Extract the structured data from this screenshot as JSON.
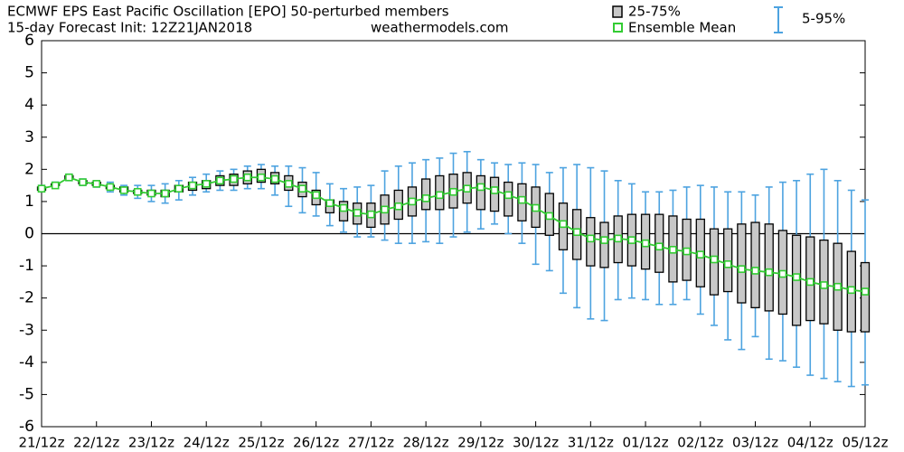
{
  "chart_data": {
    "type": "box",
    "title": "ECMWF EPS East Pacific Oscillation [EPO]  50-perturbed members",
    "subtitle": "15-day Forecast Init: 12Z21JAN2018",
    "source": "weathermodels.com",
    "legend": {
      "box": "25-75%",
      "mean": "Ensemble Mean",
      "whisker": "5-95%"
    },
    "colors": {
      "box": "#c8c8c8",
      "mean": "#33cc33",
      "whisker": "#4da3e0"
    },
    "x": [
      0,
      6,
      12,
      18,
      24,
      30,
      36,
      42,
      48,
      54,
      60,
      66,
      72,
      78,
      84,
      90,
      96,
      102,
      108,
      114,
      120,
      126,
      132,
      138,
      144,
      150,
      156,
      162,
      168,
      174,
      180,
      186,
      192,
      198,
      204,
      210,
      216,
      222,
      228,
      234,
      240,
      246,
      252,
      258,
      264,
      270,
      276,
      282,
      288,
      294,
      300,
      306,
      312,
      318,
      324,
      330,
      336,
      342,
      348,
      354,
      360
    ],
    "p5": [
      1.3,
      1.45,
      1.65,
      1.5,
      1.45,
      1.3,
      1.2,
      1.1,
      1.0,
      0.95,
      1.05,
      1.2,
      1.3,
      1.35,
      1.35,
      1.4,
      1.4,
      1.2,
      0.85,
      0.65,
      0.55,
      0.25,
      0.05,
      -0.1,
      -0.1,
      -0.2,
      -0.3,
      -0.3,
      -0.25,
      -0.3,
      -0.1,
      0.05,
      0.15,
      0.3,
      0,
      -0.3,
      -0.95,
      -1.15,
      -1.85,
      -2.3,
      -2.65,
      -2.7,
      -2.05,
      -2.0,
      -2.05,
      -2.2,
      -2.2,
      -2.05,
      -2.5,
      -2.85,
      -3.3,
      -3.6,
      -3.2,
      -3.9,
      -3.95,
      -4.15,
      -4.4,
      -4.5,
      -4.6,
      -4.75,
      -4.7
    ],
    "q25": [
      1.35,
      1.5,
      1.7,
      1.55,
      1.5,
      1.4,
      1.3,
      1.25,
      1.2,
      1.15,
      1.3,
      1.35,
      1.4,
      1.5,
      1.5,
      1.55,
      1.6,
      1.55,
      1.35,
      1.15,
      0.9,
      0.65,
      0.4,
      0.3,
      0.2,
      0.3,
      0.45,
      0.55,
      0.75,
      0.75,
      0.8,
      0.95,
      0.75,
      0.7,
      0.55,
      0.4,
      0.2,
      -0.05,
      -0.5,
      -0.8,
      -1.0,
      -1.05,
      -0.9,
      -1.0,
      -1.1,
      -1.2,
      -1.5,
      -1.45,
      -1.65,
      -1.9,
      -1.8,
      -2.15,
      -2.3,
      -2.4,
      -2.5,
      -2.85,
      -2.7,
      -2.8,
      -3.0,
      -3.05,
      -3.05
    ],
    "q75": [
      1.45,
      1.55,
      1.8,
      1.65,
      1.6,
      1.5,
      1.45,
      1.35,
      1.35,
      1.35,
      1.5,
      1.6,
      1.65,
      1.8,
      1.85,
      1.95,
      2.0,
      1.9,
      1.8,
      1.6,
      1.35,
      1.05,
      1.0,
      0.95,
      0.95,
      1.2,
      1.35,
      1.45,
      1.7,
      1.8,
      1.85,
      1.9,
      1.8,
      1.75,
      1.6,
      1.55,
      1.45,
      1.25,
      0.95,
      0.75,
      0.5,
      0.35,
      0.55,
      0.6,
      0.6,
      0.6,
      0.55,
      0.45,
      0.45,
      0.15,
      0.15,
      0.3,
      0.35,
      0.3,
      0.1,
      -0.05,
      -0.1,
      -0.2,
      -0.3,
      -0.55,
      -0.9
    ],
    "p95": [
      1.5,
      1.6,
      1.85,
      1.7,
      1.65,
      1.6,
      1.5,
      1.5,
      1.5,
      1.55,
      1.65,
      1.75,
      1.85,
      1.95,
      2.0,
      2.1,
      2.15,
      2.1,
      2.1,
      2.05,
      1.9,
      1.55,
      1.4,
      1.45,
      1.5,
      1.95,
      2.1,
      2.2,
      2.3,
      2.35,
      2.5,
      2.55,
      2.3,
      2.2,
      2.15,
      2.2,
      2.15,
      1.9,
      2.05,
      2.15,
      2.05,
      1.95,
      1.65,
      1.55,
      1.3,
      1.3,
      1.35,
      1.45,
      1.5,
      1.45,
      1.3,
      1.3,
      1.2,
      1.45,
      1.6,
      1.65,
      1.85,
      2.0,
      1.65,
      1.35,
      1.05
    ],
    "mean": [
      1.4,
      1.5,
      1.75,
      1.6,
      1.55,
      1.45,
      1.35,
      1.3,
      1.25,
      1.25,
      1.4,
      1.5,
      1.55,
      1.65,
      1.7,
      1.75,
      1.75,
      1.7,
      1.55,
      1.4,
      1.2,
      0.95,
      0.8,
      0.65,
      0.6,
      0.75,
      0.85,
      1.0,
      1.1,
      1.2,
      1.3,
      1.4,
      1.45,
      1.35,
      1.2,
      1.05,
      0.8,
      0.55,
      0.3,
      0.05,
      -0.15,
      -0.2,
      -0.15,
      -0.2,
      -0.3,
      -0.4,
      -0.5,
      -0.55,
      -0.65,
      -0.8,
      -0.95,
      -1.1,
      -1.15,
      -1.2,
      -1.25,
      -1.35,
      -1.5,
      -1.6,
      -1.65,
      -1.75,
      -1.8
    ],
    "xlim": [
      0,
      360
    ],
    "xticks": [
      {
        "value": 0,
        "label": "21/12z"
      },
      {
        "value": 24,
        "label": "22/12z"
      },
      {
        "value": 48,
        "label": "23/12z"
      },
      {
        "value": 72,
        "label": "24/12z"
      },
      {
        "value": 96,
        "label": "25/12z"
      },
      {
        "value": 120,
        "label": "26/12z"
      },
      {
        "value": 144,
        "label": "27/12z"
      },
      {
        "value": 168,
        "label": "28/12z"
      },
      {
        "value": 192,
        "label": "29/12z"
      },
      {
        "value": 216,
        "label": "30/12z"
      },
      {
        "value": 240,
        "label": "31/12z"
      },
      {
        "value": 264,
        "label": "01/12z"
      },
      {
        "value": 288,
        "label": "02/12z"
      },
      {
        "value": 312,
        "label": "03/12z"
      },
      {
        "value": 336,
        "label": "04/12z"
      },
      {
        "value": 360,
        "label": "05/12z"
      }
    ],
    "ylim": [
      -6,
      6
    ],
    "yticks": [
      -6,
      -5,
      -4,
      -3,
      -2,
      -1,
      0,
      1,
      2,
      3,
      4,
      5,
      6
    ]
  }
}
